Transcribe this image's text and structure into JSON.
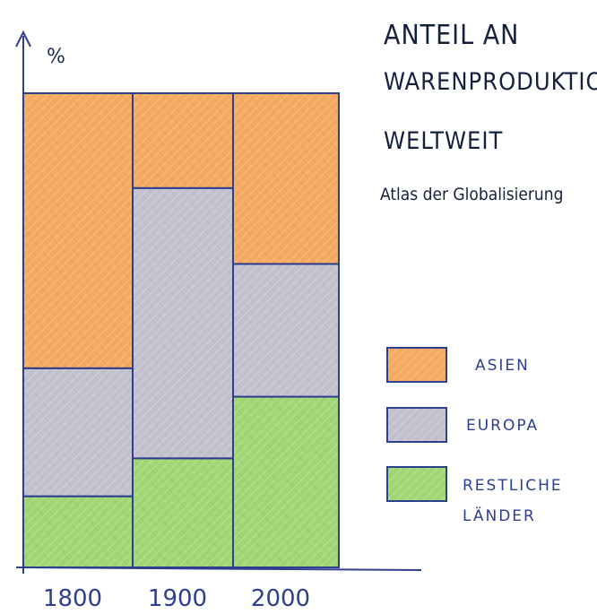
{
  "chart_data": {
    "type": "bar",
    "stacked": true,
    "ylabel": "%",
    "title_lines": [
      "ANTEIL AN",
      "WARENPRODUKTION",
      "WELTWEIT",
      "Atlas der Globalisierung"
    ],
    "categories": [
      "1800",
      "1900",
      "2000"
    ],
    "ylim": [
      0,
      100
    ],
    "series": [
      {
        "name": "RESTLICHE LÄNDER",
        "color": "#8fcf5a",
        "values": [
          15,
          23,
          36
        ]
      },
      {
        "name": "EUROPA",
        "color": "#b9b6c6",
        "values": [
          27,
          57,
          28
        ]
      },
      {
        "name": "ASIEN",
        "color": "#f39a45",
        "values": [
          58,
          20,
          36
        ]
      }
    ],
    "legend": "right"
  }
}
